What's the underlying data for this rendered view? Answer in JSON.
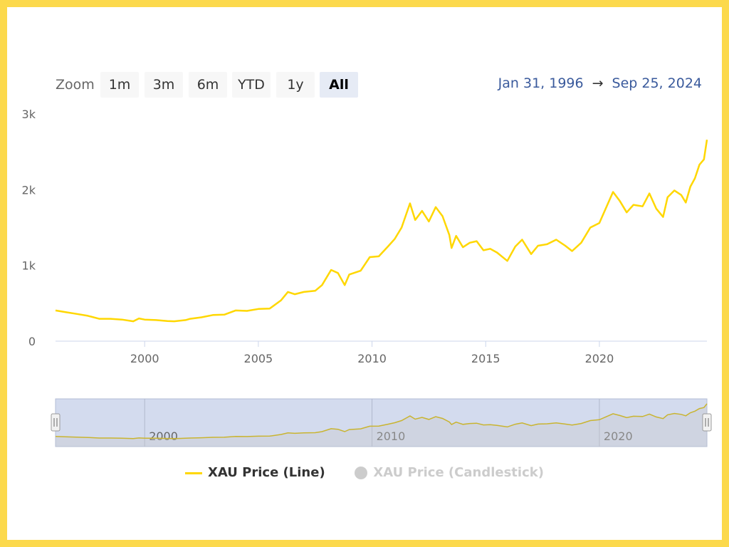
{
  "toolbar": {
    "zoom_label": "Zoom",
    "buttons": [
      "1m",
      "3m",
      "6m",
      "YTD",
      "1y",
      "All"
    ],
    "active": "All"
  },
  "range": {
    "from": "Jan 31, 1996",
    "arrow": "→",
    "to": "Sep 25, 2024"
  },
  "legend": {
    "line_label": "XAU Price (Line)",
    "candle_label": "XAU Price (Candlestick)"
  },
  "colors": {
    "line": "#ffd700",
    "navigator_mask": "#d3dbee",
    "background_frame": "#fcd94c",
    "range_text": "#3a5a9c"
  },
  "chart_data": {
    "type": "line",
    "series": [
      {
        "name": "XAU Price (Line)",
        "points": [
          [
            1996.08,
            405
          ],
          [
            1996.5,
            385
          ],
          [
            1997.0,
            360
          ],
          [
            1997.5,
            335
          ],
          [
            1998.0,
            295
          ],
          [
            1998.5,
            295
          ],
          [
            1999.0,
            285
          ],
          [
            1999.5,
            262
          ],
          [
            1999.75,
            300
          ],
          [
            2000.0,
            285
          ],
          [
            2000.5,
            278
          ],
          [
            2001.0,
            265
          ],
          [
            2001.3,
            262
          ],
          [
            2001.8,
            278
          ],
          [
            2002.0,
            295
          ],
          [
            2002.5,
            315
          ],
          [
            2003.0,
            345
          ],
          [
            2003.5,
            350
          ],
          [
            2004.0,
            405
          ],
          [
            2004.5,
            400
          ],
          [
            2005.0,
            425
          ],
          [
            2005.5,
            430
          ],
          [
            2006.0,
            540
          ],
          [
            2006.3,
            650
          ],
          [
            2006.6,
            620
          ],
          [
            2007.0,
            650
          ],
          [
            2007.5,
            665
          ],
          [
            2007.8,
            740
          ],
          [
            2008.2,
            940
          ],
          [
            2008.5,
            900
          ],
          [
            2008.8,
            740
          ],
          [
            2009.0,
            880
          ],
          [
            2009.5,
            930
          ],
          [
            2009.9,
            1110
          ],
          [
            2010.3,
            1120
          ],
          [
            2010.7,
            1250
          ],
          [
            2011.0,
            1350
          ],
          [
            2011.3,
            1500
          ],
          [
            2011.67,
            1820
          ],
          [
            2011.9,
            1600
          ],
          [
            2012.2,
            1720
          ],
          [
            2012.5,
            1580
          ],
          [
            2012.8,
            1770
          ],
          [
            2013.1,
            1650
          ],
          [
            2013.4,
            1400
          ],
          [
            2013.5,
            1230
          ],
          [
            2013.7,
            1390
          ],
          [
            2014.0,
            1240
          ],
          [
            2014.3,
            1300
          ],
          [
            2014.6,
            1320
          ],
          [
            2014.9,
            1200
          ],
          [
            2015.2,
            1220
          ],
          [
            2015.5,
            1170
          ],
          [
            2015.95,
            1060
          ],
          [
            2016.3,
            1250
          ],
          [
            2016.6,
            1340
          ],
          [
            2017.0,
            1150
          ],
          [
            2017.3,
            1260
          ],
          [
            2017.7,
            1280
          ],
          [
            2018.1,
            1340
          ],
          [
            2018.5,
            1260
          ],
          [
            2018.8,
            1190
          ],
          [
            2019.2,
            1300
          ],
          [
            2019.6,
            1500
          ],
          [
            2020.0,
            1560
          ],
          [
            2020.6,
            1970
          ],
          [
            2020.9,
            1850
          ],
          [
            2021.2,
            1700
          ],
          [
            2021.5,
            1800
          ],
          [
            2021.9,
            1780
          ],
          [
            2022.2,
            1950
          ],
          [
            2022.5,
            1750
          ],
          [
            2022.8,
            1640
          ],
          [
            2023.0,
            1900
          ],
          [
            2023.3,
            1990
          ],
          [
            2023.6,
            1930
          ],
          [
            2023.8,
            1830
          ],
          [
            2024.0,
            2040
          ],
          [
            2024.2,
            2150
          ],
          [
            2024.4,
            2330
          ],
          [
            2024.6,
            2400
          ],
          [
            2024.73,
            2660
          ]
        ]
      },
      {
        "name": "XAU Price (Candlestick)",
        "hidden": true
      }
    ],
    "xlim": [
      1996.08,
      2024.73
    ],
    "ylim": [
      0,
      3000
    ],
    "xticks": [
      2000,
      2005,
      2010,
      2015,
      2020
    ],
    "xtick_labels": [
      "2000",
      "2005",
      "2010",
      "2015",
      "2020"
    ],
    "yticks": [
      0,
      1000,
      2000,
      3000
    ],
    "ytick_labels": [
      "0",
      "1k",
      "2k",
      "3k"
    ],
    "navigator": {
      "xticks": [
        2000,
        2010,
        2020
      ],
      "xtick_labels": [
        "2000",
        "2010",
        "2020"
      ]
    },
    "grid": false,
    "legend_position": "bottom"
  }
}
